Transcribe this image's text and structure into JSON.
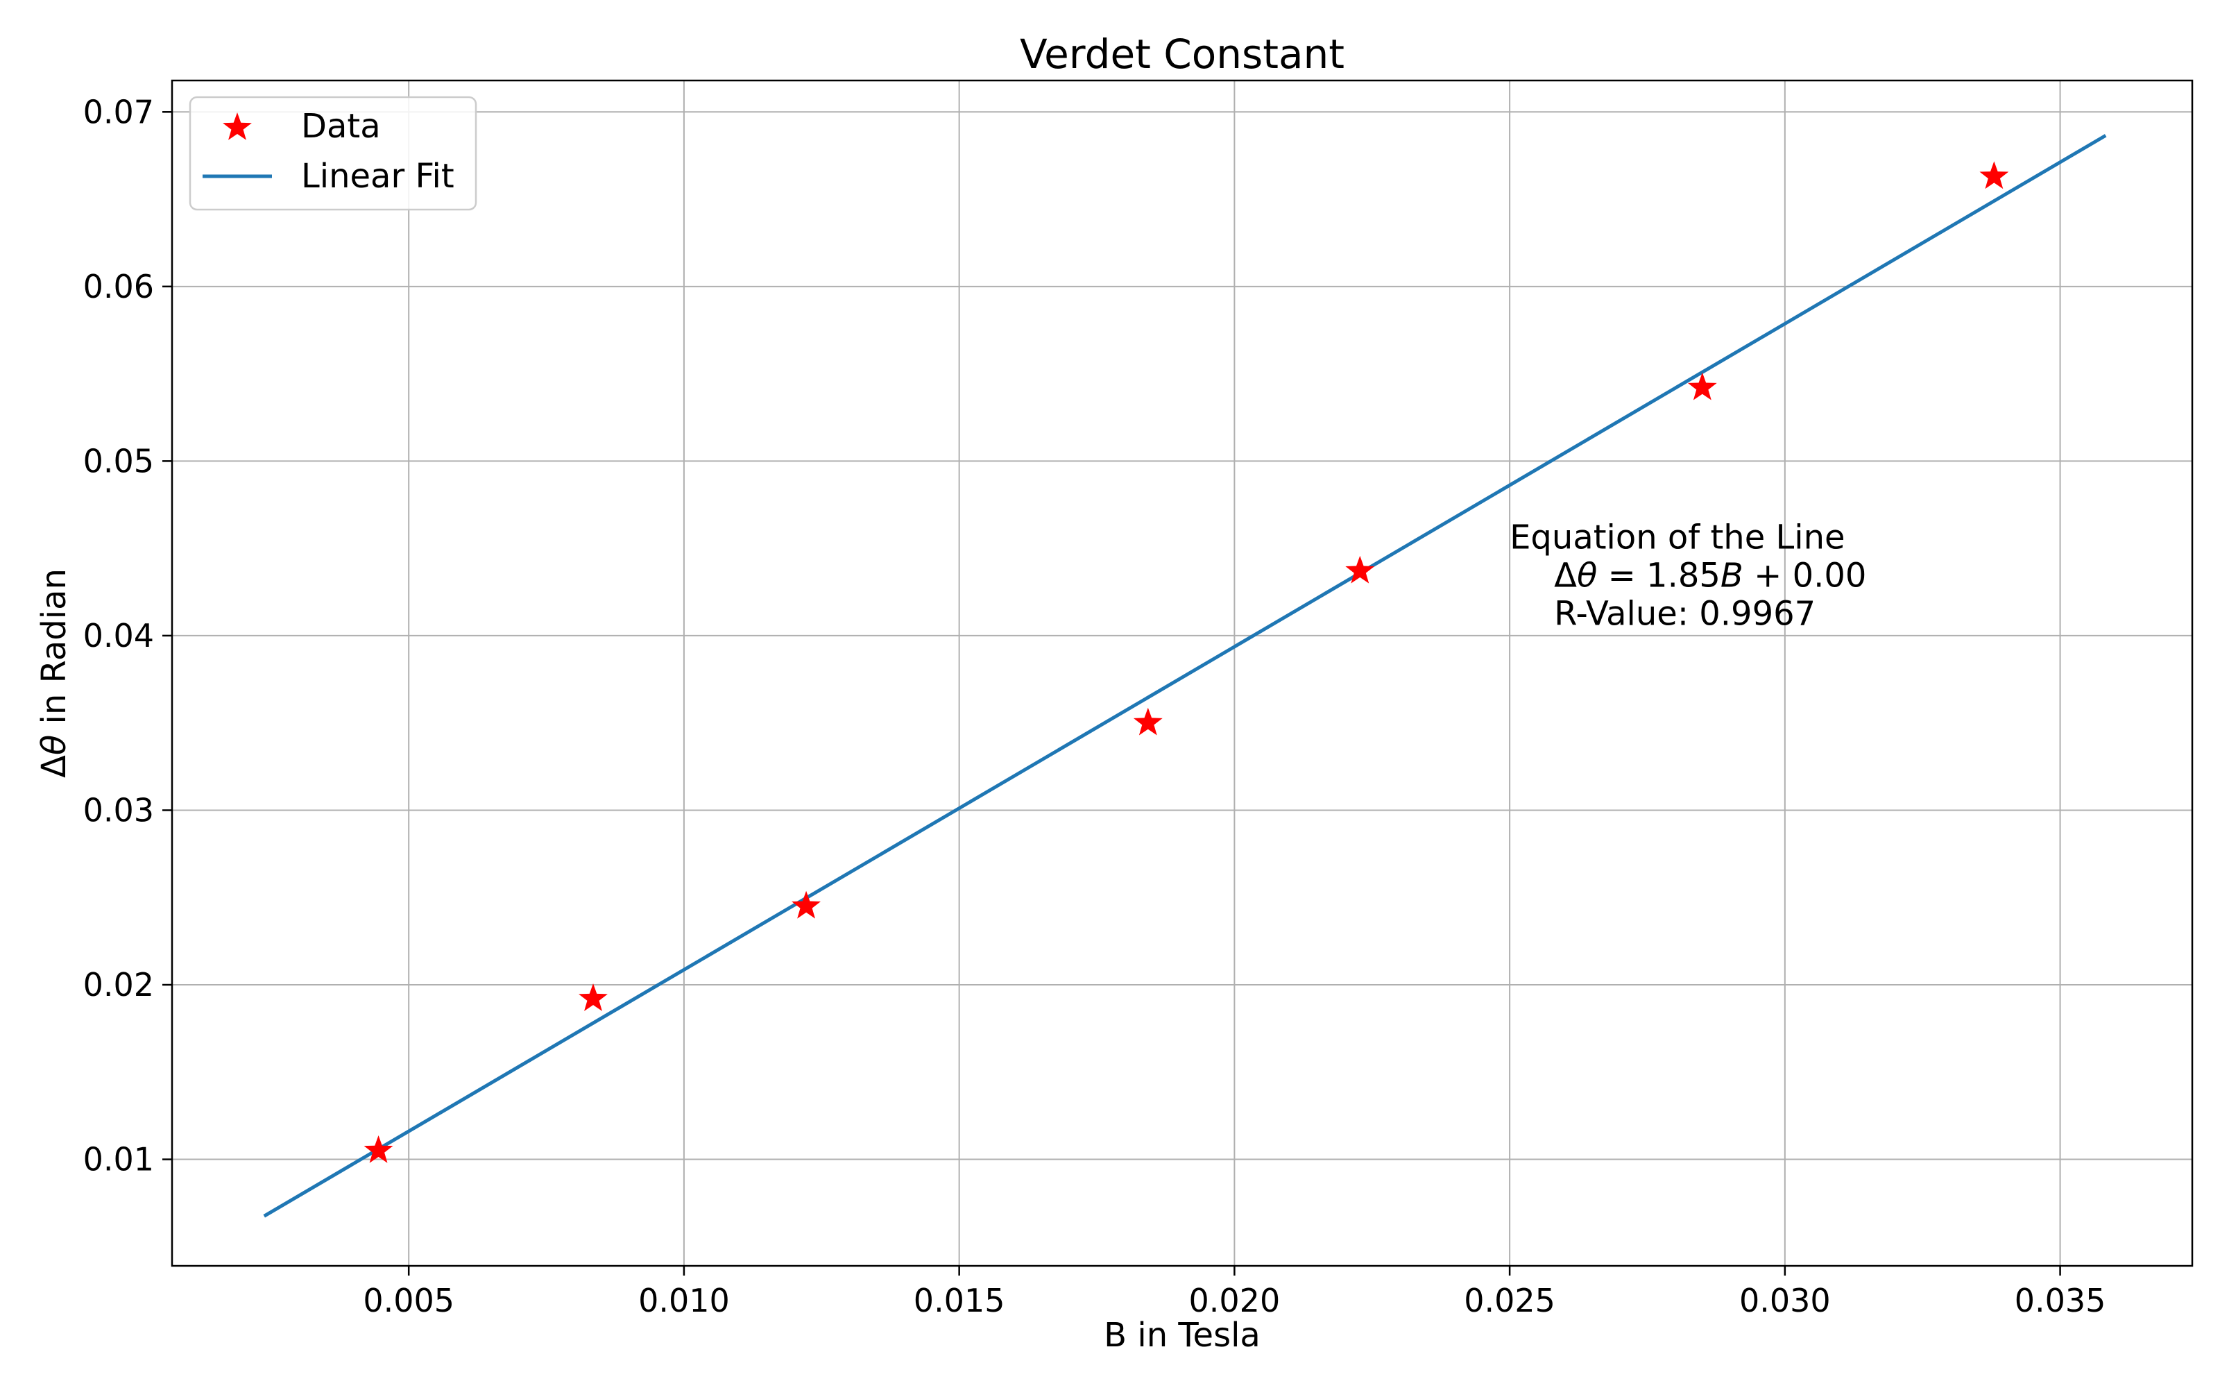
{
  "chart_data": {
    "type": "scatter",
    "title": "Verdet Constant",
    "xlabel": "B in Tesla",
    "ylabel_prefix": "Δ",
    "ylabel_symbol": "θ",
    "ylabel_suffix": " in Radian",
    "xlim": [
      0.0007,
      0.0374
    ],
    "ylim": [
      0.0039,
      0.0718
    ],
    "x_ticks": [
      0.005,
      0.01,
      0.015,
      0.02,
      0.025,
      0.03,
      0.035
    ],
    "x_tick_labels": [
      "0.005",
      "0.010",
      "0.015",
      "0.020",
      "0.025",
      "0.030",
      "0.035"
    ],
    "y_ticks": [
      0.01,
      0.02,
      0.03,
      0.04,
      0.05,
      0.06,
      0.07
    ],
    "y_tick_labels": [
      "0.01",
      "0.02",
      "0.03",
      "0.04",
      "0.05",
      "0.06",
      "0.07"
    ],
    "grid": true,
    "legend_position": "top-left",
    "series": [
      {
        "name": "Data",
        "kind": "scatter",
        "marker": "star",
        "color": "#ff0000",
        "x": [
          0.00445,
          0.00835,
          0.01222,
          0.01843,
          0.02228,
          0.0285,
          0.0338
        ],
        "y": [
          0.0105,
          0.0192,
          0.0245,
          0.035,
          0.0437,
          0.0542,
          0.0663
        ]
      },
      {
        "name": "Linear Fit",
        "kind": "line",
        "color": "#1f77b4",
        "x": [
          0.0024,
          0.0358
        ],
        "y": [
          0.0068,
          0.0686
        ]
      }
    ],
    "annotation": {
      "line1": "Equation of the Line",
      "line2_prefix": "Δ",
      "line2_symbol": "θ",
      "line2_mid": " = 1.85",
      "line2_var": "B",
      "line2_suffix": " + 0.00",
      "line3": "R-Value: 0.9967",
      "x": 0.025,
      "y": 0.0442
    }
  }
}
